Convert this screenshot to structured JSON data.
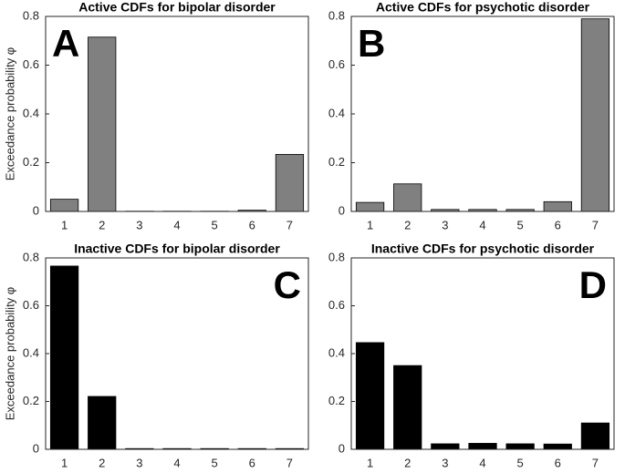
{
  "chart_data": [
    {
      "type": "bar",
      "title": "Active CDFs for bipolar disorder",
      "panel_label": "A",
      "label_corner": "top-left",
      "ylabel": "Exceedance probability φ",
      "categories": [
        "1",
        "2",
        "3",
        "4",
        "5",
        "6",
        "7"
      ],
      "values": [
        0.05,
        0.715,
        0.001,
        0.001,
        0.001,
        0.005,
        0.234
      ],
      "color": "#808080",
      "ylim": [
        0,
        0.8
      ],
      "yticks": [
        0,
        0.2,
        0.4,
        0.6,
        0.8
      ],
      "grid": false
    },
    {
      "type": "bar",
      "title": "Active CDFs for psychotic disorder",
      "panel_label": "B",
      "label_corner": "top-left",
      "categories": [
        "1",
        "2",
        "3",
        "4",
        "5",
        "6",
        "7"
      ],
      "values": [
        0.037,
        0.113,
        0.008,
        0.008,
        0.008,
        0.04,
        0.79
      ],
      "color": "#808080",
      "ylim": [
        0,
        0.8
      ],
      "yticks": [
        0,
        0.2,
        0.4,
        0.6,
        0.8
      ],
      "grid": false
    },
    {
      "type": "bar",
      "title": "Inactive CDFs for bipolar disorder",
      "panel_label": "C",
      "label_corner": "top-right",
      "ylabel": "Exceedance probability φ",
      "categories": [
        "1",
        "2",
        "3",
        "4",
        "5",
        "6",
        "7"
      ],
      "values": [
        0.766,
        0.221,
        0.003,
        0.003,
        0.003,
        0.003,
        0.003
      ],
      "color": "#000000",
      "ylim": [
        0,
        0.8
      ],
      "yticks": [
        0,
        0.2,
        0.4,
        0.6,
        0.8
      ],
      "grid": false
    },
    {
      "type": "bar",
      "title": "Inactive CDFs for psychotic disorder",
      "panel_label": "D",
      "label_corner": "top-right",
      "categories": [
        "1",
        "2",
        "3",
        "4",
        "5",
        "6",
        "7"
      ],
      "values": [
        0.446,
        0.35,
        0.023,
        0.025,
        0.023,
        0.022,
        0.11
      ],
      "color": "#000000",
      "ylim": [
        0,
        0.8
      ],
      "yticks": [
        0,
        0.2,
        0.4,
        0.6,
        0.8
      ],
      "grid": false
    }
  ]
}
